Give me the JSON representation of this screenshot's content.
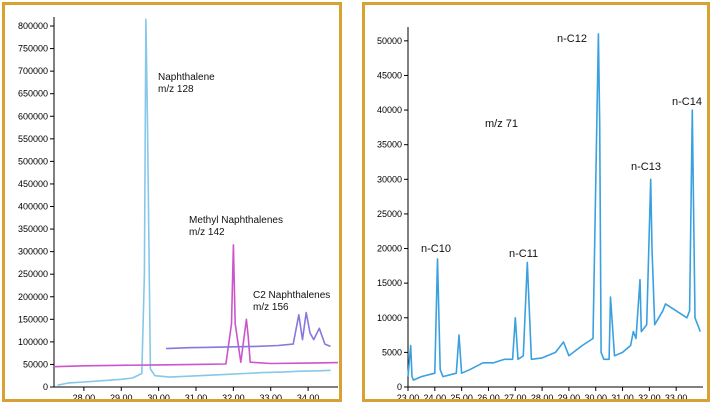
{
  "chart_data": [
    {
      "type": "line",
      "title": "",
      "xlabel": "",
      "ylabel": "",
      "xlim": [
        27.2,
        34.8
      ],
      "ylim": [
        0,
        820000
      ],
      "x_ticks": [
        "28.00",
        "29.00",
        "30.00",
        "31.00",
        "32.00",
        "33.00",
        "34.00"
      ],
      "y_ticks": [
        "0",
        "50000",
        "100000",
        "150000",
        "200000",
        "250000",
        "300000",
        "350000",
        "400000",
        "450000",
        "500000",
        "550000",
        "600000",
        "650000",
        "700000",
        "750000",
        "800000"
      ],
      "annotations": [
        {
          "line1": "Naphthalene",
          "line2": "m/z 128"
        },
        {
          "line1": "Methyl Naphthalenes",
          "line2": "m/z 142"
        },
        {
          "line1": "C2 Naphthalenes",
          "line2": "m/z 156"
        }
      ],
      "series": [
        {
          "color": "#87c7ea",
          "x": [
            27.3,
            27.6,
            28.0,
            28.5,
            29.0,
            29.3,
            29.55,
            29.62,
            29.66,
            29.7,
            29.78,
            29.9,
            30.3,
            30.8,
            31.3,
            31.8,
            32.3,
            32.8,
            33.3,
            33.8,
            34.3,
            34.6
          ],
          "y": [
            4000,
            9000,
            11000,
            14000,
            17000,
            20000,
            30000,
            250000,
            815000,
            600000,
            40000,
            25000,
            22000,
            24000,
            26000,
            28000,
            30000,
            32000,
            33000,
            35000,
            36000,
            37000
          ]
        },
        {
          "color": "#cc55cc",
          "x": [
            27.2,
            28.0,
            29.0,
            30.0,
            31.0,
            31.8,
            31.95,
            32.0,
            32.05,
            32.2,
            32.35,
            32.4,
            32.45,
            33.0,
            34.0,
            34.8
          ],
          "y": [
            45000,
            47000,
            48000,
            49000,
            50000,
            51000,
            140000,
            315000,
            140000,
            55000,
            150000,
            110000,
            55000,
            52000,
            53000,
            54000
          ]
        },
        {
          "color": "#8877dd",
          "x": [
            30.2,
            30.8,
            31.4,
            32.0,
            32.6,
            33.2,
            33.6,
            33.75,
            33.85,
            33.95,
            34.05,
            34.15,
            34.3,
            34.45,
            34.6
          ],
          "y": [
            85000,
            87000,
            88000,
            89000,
            90000,
            92000,
            95000,
            160000,
            105000,
            165000,
            120000,
            105000,
            130000,
            95000,
            90000
          ]
        }
      ]
    },
    {
      "type": "line",
      "title": "",
      "xlabel": "",
      "ylabel": "",
      "xlim": [
        23.0,
        34.0
      ],
      "ylim": [
        0,
        52000
      ],
      "x_ticks": [
        "23.00",
        "24.00",
        "25.00",
        "26.00",
        "27.00",
        "28.00",
        "29.00",
        "30.00",
        "31.00",
        "32.00",
        "33.00"
      ],
      "y_ticks": [
        "0",
        "5000",
        "10000",
        "15000",
        "20000",
        "25000",
        "30000",
        "35000",
        "40000",
        "45000",
        "50000"
      ],
      "annotations": [
        {
          "text": "m/z 71"
        },
        {
          "text": "n-C10"
        },
        {
          "text": "n-C11"
        },
        {
          "text": "n-C12"
        },
        {
          "text": "n-C13"
        },
        {
          "text": "n-C14"
        }
      ],
      "series": [
        {
          "color": "#3ba0e0",
          "x": [
            23.0,
            23.1,
            23.15,
            23.2,
            23.5,
            24.0,
            24.1,
            24.2,
            24.3,
            24.8,
            24.9,
            25.0,
            25.3,
            25.8,
            26.2,
            26.6,
            26.9,
            27.0,
            27.1,
            27.3,
            27.45,
            27.6,
            28.0,
            28.5,
            28.8,
            29.0,
            29.5,
            29.9,
            30.1,
            30.15,
            30.2,
            30.3,
            30.5,
            30.55,
            30.7,
            31.0,
            31.3,
            31.4,
            31.5,
            31.65,
            31.7,
            31.9,
            32.05,
            32.1,
            32.2,
            32.5,
            32.6,
            33.0,
            33.4,
            33.5,
            33.6,
            33.7,
            33.9
          ],
          "y": [
            1500,
            6000,
            1500,
            1000,
            1500,
            2000,
            18500,
            2500,
            1500,
            2000,
            7500,
            2000,
            2500,
            3500,
            3500,
            4000,
            4000,
            10000,
            4000,
            4500,
            18000,
            4000,
            4200,
            5000,
            6500,
            4500,
            6000,
            7000,
            51000,
            38000,
            5000,
            4000,
            4000,
            13000,
            4500,
            5000,
            6000,
            8000,
            7000,
            15500,
            8000,
            9000,
            30000,
            20000,
            9000,
            11000,
            12000,
            11000,
            10000,
            11000,
            40000,
            10000,
            8000
          ]
        }
      ]
    }
  ]
}
